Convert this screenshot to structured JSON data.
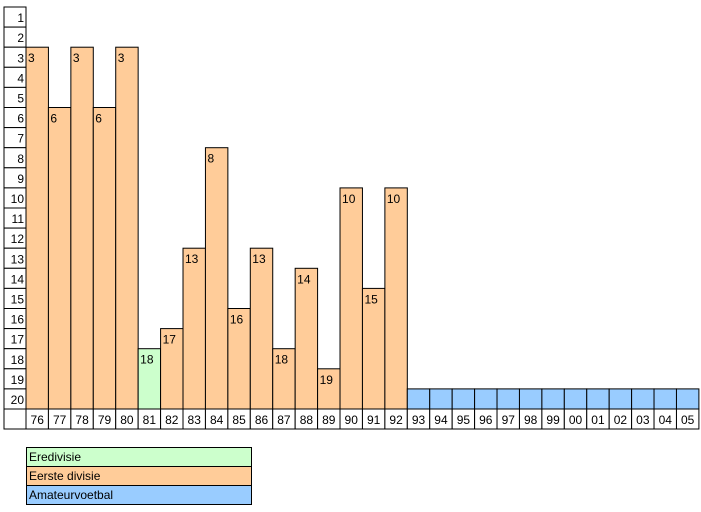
{
  "chart_data": {
    "type": "bar",
    "title": "",
    "xlabel": "",
    "ylabel": "",
    "ylim": [
      20,
      1
    ],
    "y_inverted": true,
    "y_ticks": [
      "1",
      "2",
      "3",
      "4",
      "5",
      "6",
      "7",
      "8",
      "9",
      "10",
      "11",
      "12",
      "13",
      "14",
      "15",
      "16",
      "17",
      "18",
      "19",
      "20"
    ],
    "categories": [
      "76",
      "77",
      "78",
      "79",
      "80",
      "81",
      "82",
      "83",
      "84",
      "85",
      "86",
      "87",
      "88",
      "89",
      "90",
      "91",
      "92",
      "93",
      "94",
      "95",
      "96",
      "97",
      "98",
      "99",
      "00",
      "01",
      "02",
      "03",
      "04",
      "05"
    ],
    "values": [
      3,
      6,
      3,
      6,
      3,
      18,
      17,
      13,
      8,
      16,
      13,
      18,
      14,
      19,
      10,
      15,
      10,
      20,
      20,
      20,
      20,
      20,
      20,
      20,
      20,
      20,
      20,
      20,
      20,
      20
    ],
    "value_labels": [
      "3",
      "6",
      "3",
      "6",
      "3",
      "18",
      "17",
      "13",
      "8",
      "16",
      "13",
      "18",
      "14",
      "19",
      "10",
      "15",
      "10",
      "",
      "",
      "",
      "",
      "",
      "",
      "",
      "",
      "",
      "",
      "",
      "",
      ""
    ],
    "divisions": [
      "Eerste divisie",
      "Eerste divisie",
      "Eerste divisie",
      "Eerste divisie",
      "Eerste divisie",
      "Eredivisie",
      "Eerste divisie",
      "Eerste divisie",
      "Eerste divisie",
      "Eerste divisie",
      "Eerste divisie",
      "Eerste divisie",
      "Eerste divisie",
      "Eerste divisie",
      "Eerste divisie",
      "Eerste divisie",
      "Eerste divisie",
      "Amateurvoetbal",
      "Amateurvoetbal",
      "Amateurvoetbal",
      "Amateurvoetbal",
      "Amateurvoetbal",
      "Amateurvoetbal",
      "Amateurvoetbal",
      "Amateurvoetbal",
      "Amateurvoetbal",
      "Amateurvoetbal",
      "Amateurvoetbal",
      "Amateurvoetbal",
      "Amateurvoetbal"
    ],
    "grid": false
  },
  "legend": [
    {
      "label": "Eredivisie",
      "color": "#ccffcc"
    },
    {
      "label": "Eerste divisie",
      "color": "#ffcc99"
    },
    {
      "label": "Amateurvoetbal",
      "color": "#99ccff"
    }
  ],
  "colors": {
    "Eredivisie": "#ccffcc",
    "Eerste divisie": "#ffcc99",
    "Amateurvoetbal": "#99ccff"
  }
}
